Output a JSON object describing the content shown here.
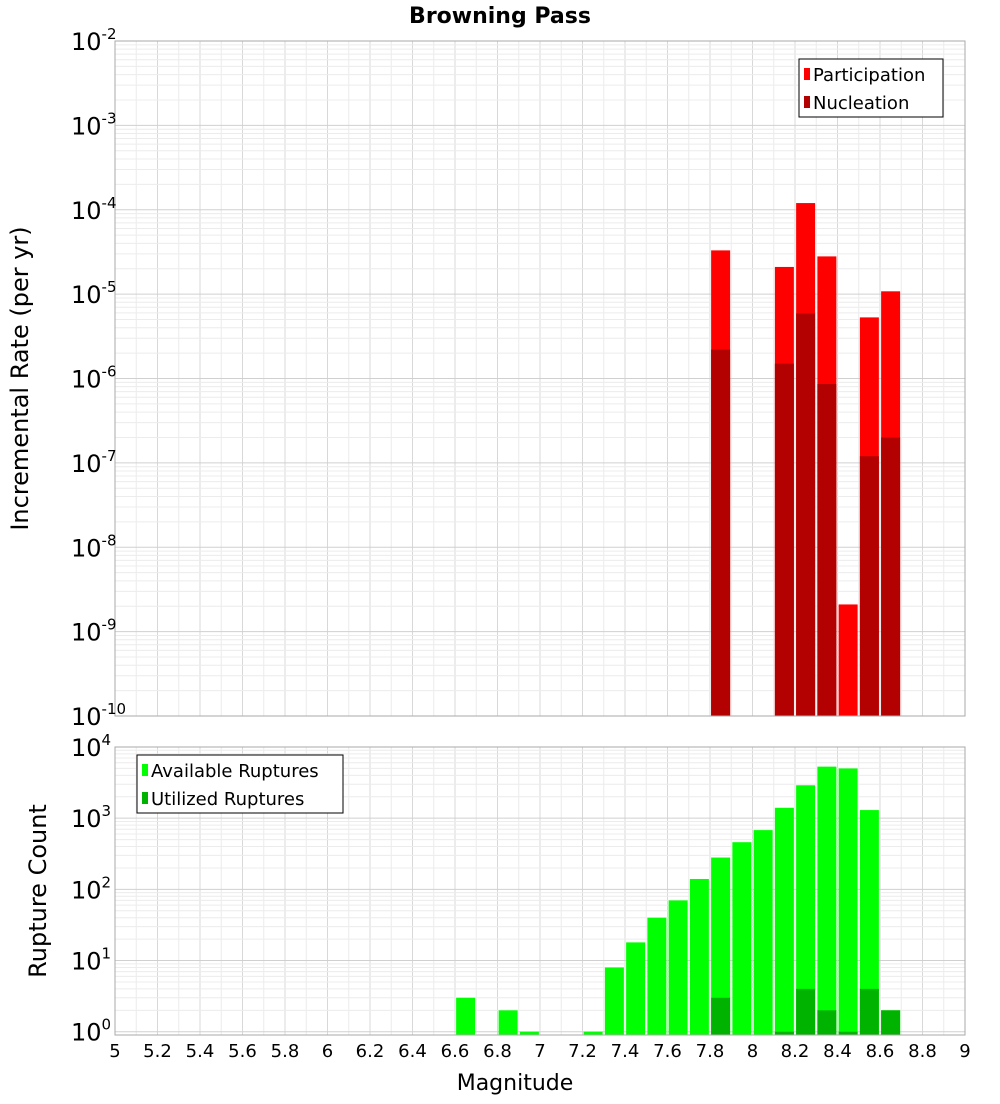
{
  "chart_data": [
    {
      "type": "bar",
      "title": "Browning Pass",
      "ylabel": "Incremental Rate (per yr)",
      "xlabel": "",
      "yscale": "log",
      "ylim": [
        1e-10,
        0.01
      ],
      "xlim": [
        5,
        9
      ],
      "ytick_labels": [
        {
          "base": "10",
          "exp": "-10"
        },
        {
          "base": "10",
          "exp": "-9"
        },
        {
          "base": "10",
          "exp": "-8"
        },
        {
          "base": "10",
          "exp": "-7"
        },
        {
          "base": "10",
          "exp": "-6"
        },
        {
          "base": "10",
          "exp": "-5"
        },
        {
          "base": "10",
          "exp": "-4"
        },
        {
          "base": "10",
          "exp": "-3"
        },
        {
          "base": "10",
          "exp": "-2"
        }
      ],
      "grid": true,
      "legend_position": "top-right",
      "series": [
        {
          "name": "Participation",
          "color": "#ff0000",
          "points": [
            {
              "x": 7.85,
              "y": 3.3e-05
            },
            {
              "x": 8.15,
              "y": 2.1e-05
            },
            {
              "x": 8.25,
              "y": 0.00012
            },
            {
              "x": 8.35,
              "y": 2.8e-05
            },
            {
              "x": 8.45,
              "y": 2.1e-09
            },
            {
              "x": 8.55,
              "y": 5.3e-06
            },
            {
              "x": 8.65,
              "y": 1.08e-05
            }
          ]
        },
        {
          "name": "Nucleation",
          "color": "#b30000",
          "points": [
            {
              "x": 7.85,
              "y": 2.2e-06
            },
            {
              "x": 8.15,
              "y": 1.5e-06
            },
            {
              "x": 8.25,
              "y": 5.9e-06
            },
            {
              "x": 8.35,
              "y": 8.6e-07
            },
            {
              "x": 8.55,
              "y": 1.2e-07
            },
            {
              "x": 8.65,
              "y": 2e-07
            }
          ]
        }
      ]
    },
    {
      "type": "bar",
      "title": "",
      "ylabel": "Rupture Count",
      "xlabel": "Magnitude",
      "yscale": "log",
      "ylim": [
        0.9,
        10000
      ],
      "xlim": [
        5,
        9
      ],
      "xticks": [
        "5",
        "5.2",
        "5.4",
        "5.6",
        "5.8",
        "6",
        "6.2",
        "6.4",
        "6.6",
        "6.8",
        "7",
        "7.2",
        "7.4",
        "7.6",
        "7.8",
        "8",
        "8.2",
        "8.4",
        "8.6",
        "8.8",
        "9"
      ],
      "ytick_labels": [
        {
          "base": "10",
          "exp": "0"
        },
        {
          "base": "10",
          "exp": "1"
        },
        {
          "base": "10",
          "exp": "2"
        },
        {
          "base": "10",
          "exp": "3"
        },
        {
          "base": "10",
          "exp": "4"
        }
      ],
      "grid": true,
      "legend_position": "top-left",
      "series": [
        {
          "name": "Available Ruptures",
          "color": "#00ff00",
          "points": [
            {
              "x": 6.65,
              "y": 3
            },
            {
              "x": 6.85,
              "y": 2
            },
            {
              "x": 6.95,
              "y": 1
            },
            {
              "x": 7.25,
              "y": 1
            },
            {
              "x": 7.35,
              "y": 8
            },
            {
              "x": 7.45,
              "y": 18
            },
            {
              "x": 7.55,
              "y": 40
            },
            {
              "x": 7.65,
              "y": 70
            },
            {
              "x": 7.75,
              "y": 140
            },
            {
              "x": 7.85,
              "y": 280
            },
            {
              "x": 7.95,
              "y": 460
            },
            {
              "x": 8.05,
              "y": 680
            },
            {
              "x": 8.15,
              "y": 1400
            },
            {
              "x": 8.25,
              "y": 2900
            },
            {
              "x": 8.35,
              "y": 5300
            },
            {
              "x": 8.45,
              "y": 5000
            },
            {
              "x": 8.55,
              "y": 1300
            },
            {
              "x": 8.65,
              "y": 2
            }
          ]
        },
        {
          "name": "Utilized Ruptures",
          "color": "#00b300",
          "points": [
            {
              "x": 7.85,
              "y": 3
            },
            {
              "x": 8.15,
              "y": 1
            },
            {
              "x": 8.25,
              "y": 4
            },
            {
              "x": 8.35,
              "y": 2
            },
            {
              "x": 8.45,
              "y": 1
            },
            {
              "x": 8.55,
              "y": 4
            },
            {
              "x": 8.65,
              "y": 2
            }
          ]
        }
      ]
    }
  ]
}
